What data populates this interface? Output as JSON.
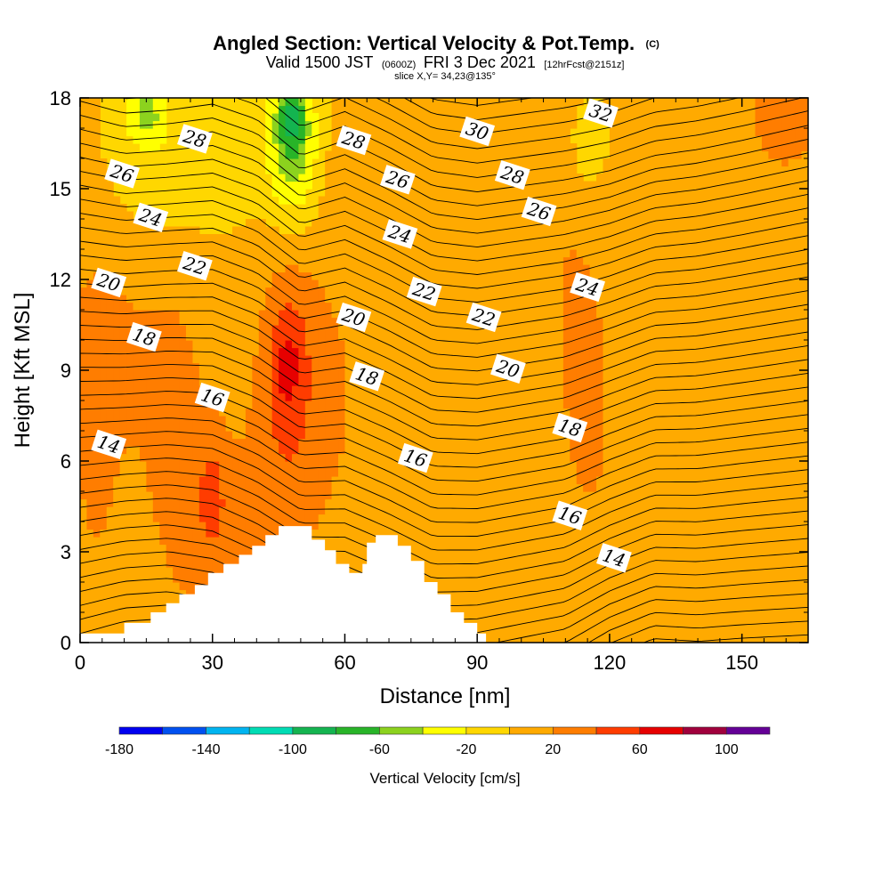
{
  "chart_data": {
    "type": "heatmap",
    "title": "Angled Section: Vertical Velocity & Pot.Temp.",
    "title_units": "(C)",
    "subtitle_main": "Valid 1500 JST",
    "subtitle_utc": "(0600Z)",
    "subtitle_date": "FRI 3 Dec 2021",
    "subtitle_fcst": "[12hrFcst@2151z]",
    "slice_info": "slice X,Y= 34,23@135°",
    "xlabel": "Distance [nm]",
    "ylabel": "Height [Kft MSL]",
    "xlim": [
      0,
      165
    ],
    "ylim": [
      0,
      18
    ],
    "x_ticks": [
      "0",
      "30",
      "60",
      "90",
      "120",
      "150"
    ],
    "x_tick_values": [
      0,
      30,
      60,
      90,
      120,
      150
    ],
    "y_ticks": [
      "0",
      "3",
      "6",
      "9",
      "12",
      "15",
      "18"
    ],
    "y_tick_values": [
      0,
      3,
      6,
      9,
      12,
      15,
      18
    ],
    "colorbar": {
      "label": "Vertical Velocity [cm/s]",
      "min": -180,
      "max": 120,
      "step": 20,
      "tick_labels": [
        "-180",
        "-140",
        "-100",
        "-60",
        "-20",
        "20",
        "60",
        "100"
      ],
      "tick_values": [
        -180,
        -140,
        -100,
        -60,
        -20,
        20,
        60,
        100
      ],
      "colors": [
        "#0000f0",
        "#0050f0",
        "#00b4f0",
        "#00dcb4",
        "#14b450",
        "#28b428",
        "#8cd21e",
        "#ffff00",
        "#ffd700",
        "#ffaa00",
        "#ff7d00",
        "#ff3c00",
        "#e60000",
        "#a0003c",
        "#640096"
      ]
    },
    "background_color": "#ffd700",
    "velocity_features": [
      {
        "x": 48,
        "y": 9,
        "sx": 6,
        "sy": 3.2,
        "w": 40
      },
      {
        "x": 47,
        "y": 9.2,
        "sx": 2.5,
        "sy": 1.4,
        "w": 25
      },
      {
        "x": 40,
        "y": 3.5,
        "sx": 12,
        "sy": 3,
        "w": 20
      },
      {
        "x": 22,
        "y": 8,
        "sx": 8,
        "sy": 7,
        "w": 20
      },
      {
        "x": 30,
        "y": 4.8,
        "sx": 2.5,
        "sy": 1.5,
        "w": 25
      },
      {
        "x": 5,
        "y": 10,
        "sx": 9,
        "sy": 4,
        "w": 18
      },
      {
        "x": 3,
        "y": 5,
        "sx": 4,
        "sy": 5,
        "w": 15
      },
      {
        "x": 62,
        "y": 10,
        "sx": 5,
        "sy": 8,
        "w": 15
      },
      {
        "x": 80,
        "y": 3.5,
        "sx": 4,
        "sy": 3,
        "w": 15
      },
      {
        "x": 112,
        "y": 14,
        "sx": 9,
        "sy": 6,
        "w": 18
      },
      {
        "x": 116,
        "y": 6,
        "sx": 7,
        "sy": 4,
        "w": 15
      },
      {
        "x": 160,
        "y": 13,
        "sx": 12,
        "sy": 5,
        "w": 20
      },
      {
        "x": 160,
        "y": 17.5,
        "sx": 5,
        "sy": 0.8,
        "w": 25
      },
      {
        "x": 90,
        "y": 16,
        "sx": 10,
        "sy": 2.5,
        "w": 12
      },
      {
        "x": 133,
        "y": 2.5,
        "sx": 2.5,
        "sy": 2.5,
        "w": 18
      },
      {
        "x": 48,
        "y": 16.5,
        "sx": 4,
        "sy": 1.8,
        "w": -60
      },
      {
        "x": 48,
        "y": 17.5,
        "sx": 2,
        "sy": 0.8,
        "w": -40
      },
      {
        "x": 15,
        "y": 17.5,
        "sx": 3,
        "sy": 0.7,
        "w": -45
      },
      {
        "x": 20,
        "y": 15.5,
        "sx": 10,
        "sy": 2,
        "w": -25
      },
      {
        "x": 115,
        "y": 16.5,
        "sx": 4,
        "sy": 1.5,
        "w": -25
      }
    ],
    "theta_contours": {
      "min": 10,
      "max": 40,
      "step": 0.5,
      "profile_x": [
        0,
        10,
        20,
        30,
        40,
        50,
        60,
        70,
        80,
        90,
        100,
        110,
        120,
        130,
        140,
        150,
        165
      ],
      "profile_dz": [
        0.3,
        0.7,
        0.8,
        0.5,
        -0.2,
        -1.0,
        -1.2,
        -1.8,
        -2.5,
        -2.4,
        -2.1,
        -1.8,
        -0.9,
        -0.3,
        -0.4,
        -0.3,
        -0.2
      ],
      "upper_dz": [
        -0.2,
        -0.6,
        -0.5,
        -0.3,
        -0.8,
        -2.0,
        -1.5,
        -2.2,
        -3.0,
        -3.2,
        -3.0,
        -2.8,
        -2.5,
        -2.0,
        -1.8,
        -1.5,
        -1.0
      ],
      "base_value": 12.5,
      "lapse_per_kft": 1.05
    },
    "contour_labels": [
      {
        "text": "14",
        "x": 6.5,
        "y": 6.55
      },
      {
        "text": "14",
        "x": 121,
        "y": 2.8
      },
      {
        "text": "16",
        "x": 30,
        "y": 8.1
      },
      {
        "text": "16",
        "x": 76,
        "y": 6.1
      },
      {
        "text": "16",
        "x": 111,
        "y": 4.2
      },
      {
        "text": "18",
        "x": 14.5,
        "y": 10.1
      },
      {
        "text": "18",
        "x": 65,
        "y": 8.8
      },
      {
        "text": "18",
        "x": 111,
        "y": 7.1
      },
      {
        "text": "20",
        "x": 6.5,
        "y": 11.9
      },
      {
        "text": "20",
        "x": 62,
        "y": 10.75
      },
      {
        "text": "20",
        "x": 97,
        "y": 9.05
      },
      {
        "text": "22",
        "x": 26,
        "y": 12.45
      },
      {
        "text": "22",
        "x": 78,
        "y": 11.6
      },
      {
        "text": "22",
        "x": 91.5,
        "y": 10.75
      },
      {
        "text": "24",
        "x": 16,
        "y": 14.05
      },
      {
        "text": "24",
        "x": 72.5,
        "y": 13.5
      },
      {
        "text": "24",
        "x": 115,
        "y": 11.75
      },
      {
        "text": "26",
        "x": 9.5,
        "y": 15.5
      },
      {
        "text": "26",
        "x": 72,
        "y": 15.3
      },
      {
        "text": "26",
        "x": 104,
        "y": 14.25
      },
      {
        "text": "28",
        "x": 26,
        "y": 16.65
      },
      {
        "text": "28",
        "x": 62,
        "y": 16.6
      },
      {
        "text": "28",
        "x": 98,
        "y": 15.45
      },
      {
        "text": "30",
        "x": 90,
        "y": 16.9
      },
      {
        "text": "32",
        "x": 118,
        "y": 17.5
      }
    ],
    "terrain": {
      "fill": "#ffffff",
      "points": [
        [
          0,
          0
        ],
        [
          0,
          0.3
        ],
        [
          10,
          0.3
        ],
        [
          10,
          0.65
        ],
        [
          16,
          0.65
        ],
        [
          16,
          1.0
        ],
        [
          19.5,
          1.0
        ],
        [
          19.5,
          1.3
        ],
        [
          22.5,
          1.3
        ],
        [
          22.5,
          1.6
        ],
        [
          26,
          1.6
        ],
        [
          26,
          1.9
        ],
        [
          29,
          1.9
        ],
        [
          29,
          2.3
        ],
        [
          32.5,
          2.3
        ],
        [
          32.5,
          2.6
        ],
        [
          36,
          2.6
        ],
        [
          36,
          2.9
        ],
        [
          39,
          2.9
        ],
        [
          39,
          3.2
        ],
        [
          42,
          3.2
        ],
        [
          42,
          3.55
        ],
        [
          45,
          3.55
        ],
        [
          45,
          3.85
        ],
        [
          52.5,
          3.85
        ],
        [
          52.5,
          3.4
        ],
        [
          55.5,
          3.4
        ],
        [
          55.5,
          3.05
        ],
        [
          58,
          3.05
        ],
        [
          58,
          2.6
        ],
        [
          61,
          2.6
        ],
        [
          61,
          2.3
        ],
        [
          64,
          2.3
        ],
        [
          64,
          2.6
        ],
        [
          65,
          2.6
        ],
        [
          65,
          3.3
        ],
        [
          67,
          3.3
        ],
        [
          67,
          3.55
        ],
        [
          72,
          3.55
        ],
        [
          72,
          3.2
        ],
        [
          75,
          3.2
        ],
        [
          75,
          2.7
        ],
        [
          78,
          2.7
        ],
        [
          78,
          2.0
        ],
        [
          81,
          2.0
        ],
        [
          81,
          1.6
        ],
        [
          84,
          1.6
        ],
        [
          84,
          1.0
        ],
        [
          87,
          1.0
        ],
        [
          87,
          0.65
        ],
        [
          90,
          0.65
        ],
        [
          90,
          0.3
        ],
        [
          92,
          0.3
        ],
        [
          92,
          0
        ]
      ]
    }
  }
}
